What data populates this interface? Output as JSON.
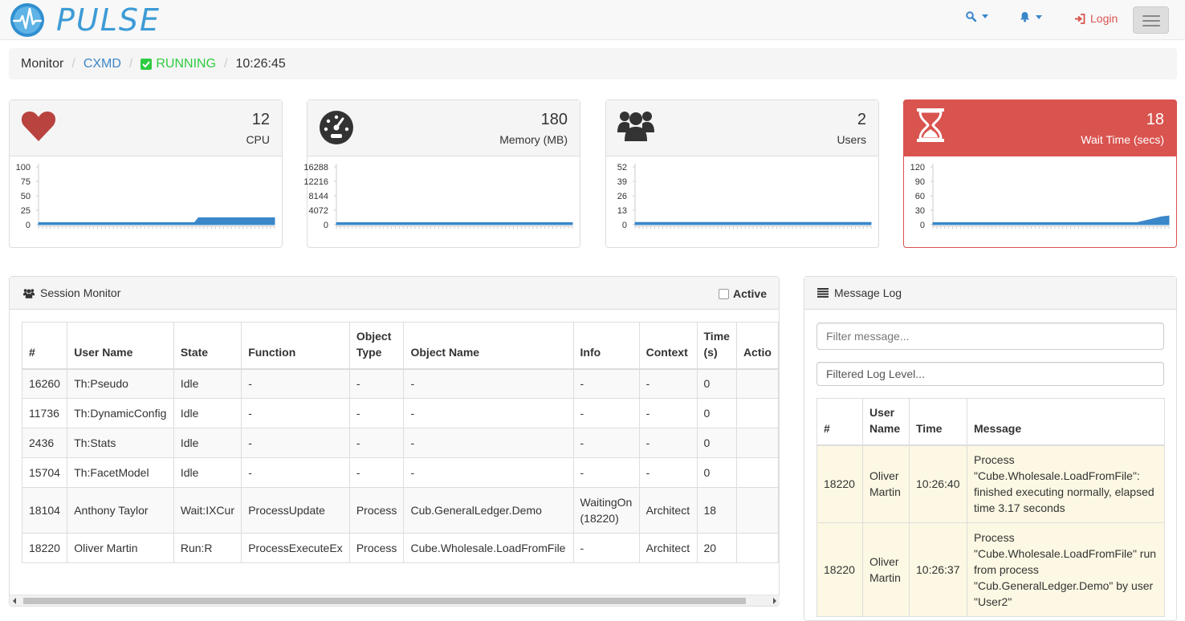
{
  "navbar": {
    "brand": "PULSE",
    "login_label": "Login"
  },
  "breadcrumb": {
    "root": "Monitor",
    "server": "CXMD",
    "status": "RUNNING",
    "time": "10:26:45"
  },
  "stats": [
    {
      "label": "CPU",
      "value": "12",
      "icon": "heart-icon",
      "ticks": [
        "100",
        "75",
        "50",
        "25",
        "0"
      ],
      "scale_max": 100,
      "series": [
        0,
        0,
        0,
        0,
        0,
        0,
        0,
        0,
        0,
        0,
        0,
        0,
        0,
        0,
        0,
        0,
        0,
        0,
        0,
        0,
        0,
        0,
        0,
        0,
        0,
        0,
        0,
        0,
        0,
        0,
        0,
        0,
        0,
        0,
        0,
        0,
        0,
        0,
        0,
        0,
        12,
        12,
        12,
        12,
        12,
        12,
        12,
        12,
        12,
        12,
        12,
        12,
        12,
        12,
        12,
        12,
        12,
        12,
        12,
        12
      ]
    },
    {
      "label": "Memory (MB)",
      "value": "180",
      "icon": "dashboard-icon",
      "ticks": [
        "16288",
        "12216",
        "8144",
        "4072",
        "0"
      ],
      "scale_max": 16288,
      "series": [
        180,
        180,
        180,
        180,
        180,
        180,
        180,
        180,
        180,
        180,
        180,
        180,
        180,
        180,
        180,
        180,
        180,
        180,
        180,
        180,
        180,
        180,
        180,
        180,
        180,
        180,
        180,
        180,
        180,
        180,
        180,
        180,
        180,
        180,
        180,
        180,
        180,
        180,
        180,
        180,
        180,
        180,
        180,
        180,
        180,
        180,
        180,
        180,
        180,
        180,
        180,
        180,
        180,
        180,
        180,
        180,
        180,
        180,
        180,
        180
      ]
    },
    {
      "label": "Users",
      "value": "2",
      "icon": "users-icon",
      "ticks": [
        "52",
        "39",
        "26",
        "13",
        "0"
      ],
      "scale_max": 52,
      "series": [
        2,
        2,
        2,
        2,
        2,
        2,
        2,
        2,
        2,
        2,
        2,
        2,
        2,
        2,
        2,
        2,
        2,
        2,
        2,
        2,
        2,
        2,
        2,
        2,
        2,
        2,
        2,
        2,
        2,
        2,
        2,
        2,
        2,
        2,
        2,
        2,
        2,
        2,
        2,
        2,
        2,
        2,
        2,
        2,
        2,
        2,
        2,
        2,
        2,
        2,
        2,
        2,
        2,
        2,
        2,
        2,
        2,
        2,
        2,
        2
      ]
    },
    {
      "label": "Wait Time (secs)",
      "value": "18",
      "icon": "hourglass-icon",
      "ticks": [
        "120",
        "90",
        "60",
        "30",
        "0"
      ],
      "scale_max": 120,
      "series": [
        0,
        0,
        0,
        0,
        0,
        0,
        0,
        0,
        0,
        0,
        0,
        0,
        0,
        0,
        0,
        0,
        0,
        0,
        0,
        0,
        0,
        0,
        0,
        0,
        0,
        0,
        0,
        0,
        0,
        0,
        0,
        0,
        0,
        0,
        0,
        0,
        0,
        0,
        0,
        0,
        0,
        0,
        0,
        0,
        0,
        0,
        0,
        0,
        0,
        0,
        2,
        4,
        6,
        8,
        10,
        12,
        14,
        16,
        17,
        18
      ]
    }
  ],
  "session_monitor": {
    "title": "Session Monitor",
    "active_label": "Active",
    "columns": [
      "#",
      "User Name",
      "State",
      "Function",
      "Object Type",
      "Object Name",
      "Info",
      "Context",
      "Time (s)",
      "Actio"
    ],
    "rows": [
      [
        "16260",
        "Th:Pseudo",
        "Idle",
        "-",
        "-",
        "-",
        "-",
        "-",
        "0",
        ""
      ],
      [
        "11736",
        "Th:DynamicConfig",
        "Idle",
        "-",
        "-",
        "-",
        "-",
        "-",
        "0",
        ""
      ],
      [
        "2436",
        "Th:Stats",
        "Idle",
        "-",
        "-",
        "-",
        "-",
        "-",
        "0",
        ""
      ],
      [
        "15704",
        "Th:FacetModel",
        "Idle",
        "-",
        "-",
        "-",
        "-",
        "-",
        "0",
        ""
      ],
      [
        "18104",
        "Anthony Taylor",
        "Wait:IXCur",
        "ProcessUpdate",
        "Process",
        "Cub.GeneralLedger.Demo",
        "WaitingOn (18220)",
        "Architect",
        "18",
        ""
      ],
      [
        "18220",
        "Oliver Martin",
        "Run:R",
        "ProcessExecuteEx",
        "Process",
        "Cube.Wholesale.LoadFromFile",
        "-",
        "Architect",
        "20",
        ""
      ]
    ]
  },
  "message_log": {
    "title": "Message Log",
    "filter_placeholder": "Filter message...",
    "level_label": "Filtered Log Level...",
    "columns": [
      "#",
      "User Name",
      "Time",
      "Message"
    ],
    "rows": [
      [
        "18220",
        "Oliver Martin",
        "10:26:40",
        "Process \"Cube.Wholesale.LoadFromFile\": finished executing normally, elapsed time 3.17 seconds"
      ],
      [
        "18220",
        "Oliver Martin",
        "10:26:37",
        "Process \"Cube.Wholesale.LoadFromFile\" run from process \"Cub.GeneralLedger.Demo\" by user \"User2\""
      ]
    ]
  },
  "colors": {
    "accent": "#3a87c9",
    "running": "#2ecc40",
    "danger": "#d9534f",
    "chart": "#3a87c9",
    "log_row": "#fcf8e3"
  }
}
